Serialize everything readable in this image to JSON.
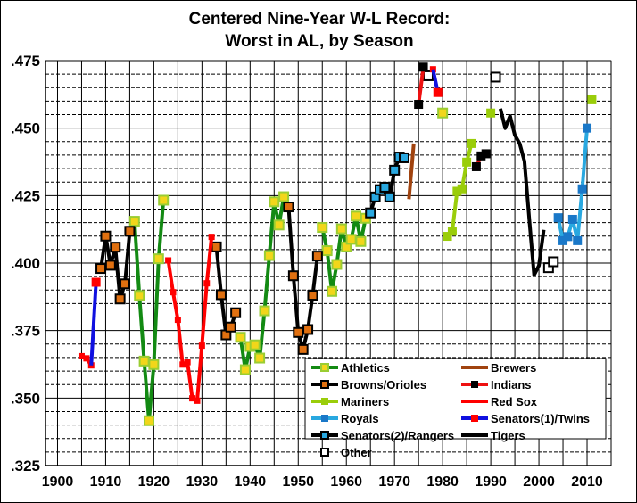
{
  "chart_data": {
    "type": "line",
    "title": [
      "Centered Nine-Year  W-L Record:",
      "Worst in AL, by Season"
    ],
    "xlabel": "",
    "ylabel": "",
    "xlim": [
      1897.5,
      2015
    ],
    "ylim": [
      0.325,
      0.475
    ],
    "x_ticks": [
      1900,
      1910,
      1920,
      1930,
      1940,
      1950,
      1960,
      1970,
      1980,
      1990,
      2000,
      2010
    ],
    "x_tick_labels": [
      "1900",
      "1910",
      "1920",
      "1930",
      "1940",
      "1950",
      "1960",
      "1970",
      "1980",
      "1990",
      "2000",
      "2010"
    ],
    "y_ticks": [
      0.325,
      0.35,
      0.375,
      0.4,
      0.425,
      0.45,
      0.475
    ],
    "y_tick_labels": [
      ".325",
      ".350",
      ".375",
      ".400",
      ".425",
      ".450",
      ".475"
    ],
    "grid": {
      "vertical_every_years": 5,
      "horizontal_minor": 0.005,
      "horizontal_major": 0.025
    },
    "legend_position": "bottom-right",
    "series": [
      {
        "name": "Athletics",
        "line": "#138a13",
        "marker_fill": "#f2d61a",
        "marker_stroke": "#9acd32",
        "marker": true,
        "points": [
          [
            1916,
            0.4155
          ],
          [
            1917,
            0.388
          ],
          [
            1918,
            0.3637
          ],
          [
            1919,
            0.3416
          ],
          [
            1920,
            0.3624
          ],
          [
            1921,
            0.4016
          ],
          [
            1922,
            0.4233
          ],
          [
            1938,
            0.3725
          ],
          [
            1939,
            0.3605
          ],
          [
            1940,
            0.3691
          ],
          [
            1941,
            0.3697
          ],
          [
            1942,
            0.3648
          ],
          [
            1943,
            0.3823
          ],
          [
            1944,
            0.4028
          ],
          [
            1945,
            0.4227
          ],
          [
            1946,
            0.4141
          ],
          [
            1947,
            0.4246
          ],
          [
            1955,
            0.4132
          ],
          [
            1956,
            0.4046
          ],
          [
            1957,
            0.3895
          ],
          [
            1958,
            0.3995
          ],
          [
            1959,
            0.4127
          ],
          [
            1960,
            0.406
          ],
          [
            1961,
            0.4088
          ],
          [
            1962,
            0.4174
          ],
          [
            1963,
            0.408
          ],
          [
            1964,
            0.4166
          ],
          [
            1980,
            0.4556
          ]
        ]
      },
      {
        "name": "Browns/Orioles",
        "line": "#000000",
        "marker_fill": "#e07010",
        "marker_stroke": "#000000",
        "marker": true,
        "points": [
          [
            1909,
            0.398
          ],
          [
            1910,
            0.41
          ],
          [
            1911,
            0.3992
          ],
          [
            1912,
            0.4059
          ],
          [
            1913,
            0.3867
          ],
          [
            1914,
            0.3923
          ],
          [
            1915,
            0.4118
          ],
          [
            1933,
            0.406
          ],
          [
            1934,
            0.3883
          ],
          [
            1935,
            0.3734
          ],
          [
            1936,
            0.3763
          ],
          [
            1937,
            0.3816
          ],
          [
            1948,
            0.4208
          ],
          [
            1949,
            0.3953
          ],
          [
            1950,
            0.3743
          ],
          [
            1951,
            0.368
          ],
          [
            1952,
            0.3754
          ],
          [
            1953,
            0.3881
          ],
          [
            1954,
            0.4026
          ]
        ]
      },
      {
        "name": "Mariners",
        "line": "#9acd0a",
        "marker_fill": "#9acd0a",
        "marker_stroke": "#9acd0a",
        "marker": true,
        "points": [
          [
            1981,
            0.4099
          ],
          [
            1982,
            0.4118
          ],
          [
            1983,
            0.4266
          ],
          [
            1984,
            0.4275
          ],
          [
            1985,
            0.4374
          ],
          [
            1986,
            0.4443
          ],
          [
            1990,
            0.4556
          ],
          [
            2011,
            0.4605
          ]
        ]
      },
      {
        "name": "Royals",
        "line": "#29a8e0",
        "marker_fill": "#1a78c8",
        "marker_stroke": "#1a78c8",
        "marker": true,
        "points": [
          [
            2004,
            0.4168
          ],
          [
            2005,
            0.4083
          ],
          [
            2006,
            0.4098
          ],
          [
            2007,
            0.4162
          ],
          [
            2008,
            0.4083
          ],
          [
            2009,
            0.4275
          ],
          [
            2010,
            0.45
          ]
        ]
      },
      {
        "name": "Senators(2)/Rangers",
        "line": "#000000",
        "marker_fill": "#29a8e0",
        "marker_stroke": "#000000",
        "marker": true,
        "points": [
          [
            1965,
            0.4186
          ],
          [
            1966,
            0.4245
          ],
          [
            1967,
            0.4272
          ],
          [
            1968,
            0.4281
          ],
          [
            1969,
            0.4245
          ],
          [
            1970,
            0.4344
          ],
          [
            1971,
            0.4393
          ],
          [
            1972,
            0.439
          ]
        ]
      },
      {
        "name": "Other",
        "line": "none",
        "marker_fill": "#ffffff",
        "marker_stroke": "#000000",
        "marker": true,
        "points": [
          [
            1977,
            0.4694
          ],
          [
            1991,
            0.4689
          ],
          [
            2002,
            0.3983
          ],
          [
            2003,
            0.4005
          ]
        ]
      },
      {
        "name": "Brewers",
        "line": "#a0430f",
        "marker": false,
        "points": [
          [
            1973,
            0.4237
          ],
          [
            1974,
            0.4443
          ]
        ]
      },
      {
        "name": "Indians",
        "line": "#ee1111",
        "marker_fill": "#000000",
        "marker_stroke": "#000000",
        "marker": true,
        "points": [
          [
            1975,
            0.4588
          ],
          [
            1976,
            0.4726
          ],
          [
            1987,
            0.4357
          ],
          [
            1988,
            0.4397
          ],
          [
            1989,
            0.4405
          ]
        ]
      },
      {
        "name": "Red Sox",
        "line": "#ff0000",
        "marker_fill": "#ff0000",
        "marker_stroke": "#ff0000",
        "marker": true,
        "points": [
          [
            1905,
            0.3655
          ],
          [
            1906,
            0.3647
          ],
          [
            1907,
            0.3621
          ],
          [
            1923,
            0.401
          ],
          [
            1924,
            0.3892
          ],
          [
            1925,
            0.379
          ],
          [
            1926,
            0.3624
          ],
          [
            1927,
            0.3633
          ],
          [
            1928,
            0.3499
          ],
          [
            1929,
            0.349
          ],
          [
            1930,
            0.3694
          ],
          [
            1931,
            0.3925
          ],
          [
            1932,
            0.4097
          ],
          [
            1978,
            0.4718
          ]
        ]
      },
      {
        "name": "Senators(1)/Twins",
        "line": "#1010e0",
        "marker_fill": "#ff0000",
        "marker_stroke": "#ff0000",
        "marker": true,
        "points": [
          [
            1908,
            0.3929
          ],
          [
            1979,
            0.4632
          ]
        ],
        "line_only_points": [
          [
            1907,
            0.3621
          ],
          [
            1978,
            0.4718
          ]
        ]
      },
      {
        "name": "Tigers",
        "line": "#000000",
        "marker": false,
        "points": [
          [
            1992,
            0.4572
          ],
          [
            1993,
            0.45
          ],
          [
            1994,
            0.4545
          ],
          [
            1995,
            0.4474
          ],
          [
            1996,
            0.4443
          ],
          [
            1997,
            0.4377
          ],
          [
            1998,
            0.4162
          ],
          [
            1999,
            0.3956
          ],
          [
            2000,
            0.3991
          ],
          [
            2001,
            0.4123
          ]
        ]
      }
    ]
  }
}
